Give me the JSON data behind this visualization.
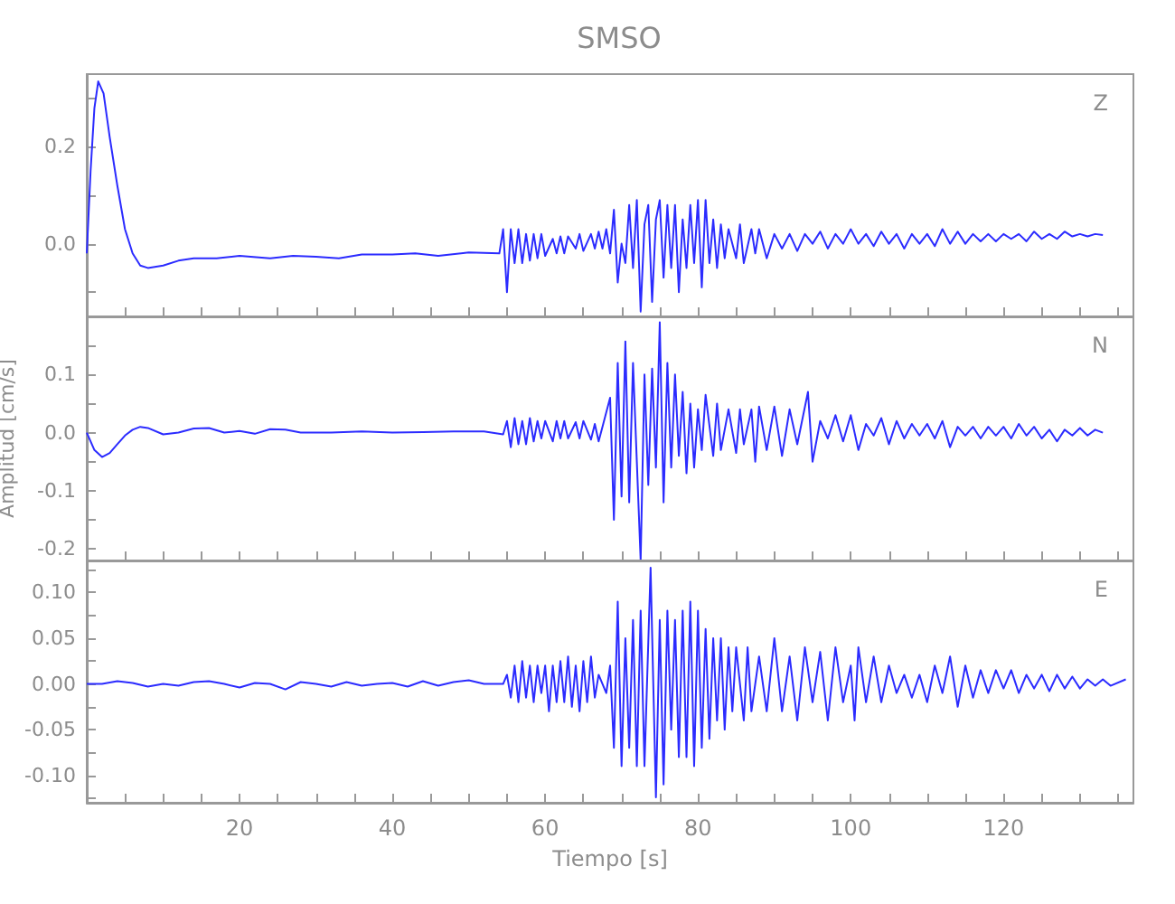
{
  "chart_data": [
    {
      "type": "line",
      "title": "SMSO",
      "annotations": [
        "Z"
      ],
      "tick_labels": "y",
      "xlim": [
        0,
        137
      ],
      "ylim": [
        -0.15,
        0.35
      ],
      "xticks": [
        {
          "value": 5,
          "label": null
        },
        {
          "value": 10,
          "label": null
        },
        {
          "value": 15,
          "label": null
        },
        {
          "value": 20,
          "label": null
        },
        {
          "value": 25,
          "label": null
        },
        {
          "value": 30,
          "label": null
        },
        {
          "value": 35,
          "label": null
        },
        {
          "value": 40,
          "label": null
        },
        {
          "value": 45,
          "label": null
        },
        {
          "value": 50,
          "label": null
        },
        {
          "value": 55,
          "label": null
        },
        {
          "value": 60,
          "label": null
        },
        {
          "value": 65,
          "label": null
        },
        {
          "value": 70,
          "label": null
        },
        {
          "value": 75,
          "label": null
        },
        {
          "value": 80,
          "label": null
        },
        {
          "value": 85,
          "label": null
        },
        {
          "value": 90,
          "label": null
        },
        {
          "value": 95,
          "label": null
        },
        {
          "value": 100,
          "label": null
        },
        {
          "value": 105,
          "label": null
        },
        {
          "value": 110,
          "label": null
        },
        {
          "value": 115,
          "label": null
        },
        {
          "value": 120,
          "label": null
        },
        {
          "value": 125,
          "label": null
        },
        {
          "value": 130,
          "label": null
        },
        {
          "value": 135,
          "label": null
        }
      ],
      "yticks": [
        {
          "value": -0.1,
          "label": null
        },
        {
          "value": 0,
          "label": "0.0"
        },
        {
          "value": 0.1,
          "label": null
        },
        0.2,
        {
          "value": 0.3,
          "label": null
        }
      ],
      "series": [
        {
          "color": "#2b2bff",
          "x": [
            0,
            0.5,
            1,
            1.5,
            2.2,
            3,
            4,
            5,
            6,
            7,
            8,
            10,
            12,
            14,
            17,
            20,
            24,
            27,
            30,
            33,
            36,
            40,
            43,
            46,
            50,
            54,
            54.5,
            55,
            55.5,
            56,
            56.5,
            57,
            57.5,
            58,
            58.5,
            59,
            59.5,
            60,
            61,
            61.5,
            62,
            62.5,
            63,
            64,
            64.5,
            65,
            66,
            66.5,
            67,
            67.5,
            68,
            68.5,
            69,
            69.5,
            70,
            70.5,
            71,
            71.5,
            72,
            72.5,
            73,
            73.5,
            74,
            74.5,
            75,
            75.5,
            76,
            76.5,
            77,
            77.5,
            78,
            78.5,
            79,
            79.5,
            80,
            80.5,
            81,
            81.5,
            82,
            82.5,
            83,
            83.5,
            84,
            85,
            85.5,
            86,
            87,
            87.5,
            88,
            89,
            90,
            91,
            92,
            93,
            94,
            95,
            96,
            97,
            98,
            99,
            100,
            101,
            102,
            103,
            104,
            105,
            106,
            107,
            108,
            109,
            110,
            111,
            112,
            113,
            114,
            115,
            116,
            117,
            118,
            119,
            120,
            121,
            122,
            123,
            124,
            125,
            126,
            127,
            128,
            129,
            130,
            131,
            132,
            133
          ],
          "values": [
            -0.02,
            0.15,
            0.28,
            0.335,
            0.31,
            0.22,
            0.12,
            0.03,
            -0.02,
            -0.045,
            -0.05,
            -0.045,
            -0.035,
            -0.03,
            -0.03,
            -0.025,
            -0.03,
            -0.025,
            -0.027,
            -0.03,
            -0.022,
            -0.022,
            -0.02,
            -0.025,
            -0.018,
            -0.02,
            0.03,
            -0.1,
            0.03,
            -0.04,
            0.03,
            -0.04,
            0.02,
            -0.035,
            0.02,
            -0.03,
            0.02,
            -0.025,
            0.01,
            -0.02,
            0.015,
            -0.02,
            0.015,
            -0.01,
            0.02,
            -0.015,
            0.02,
            -0.01,
            0.025,
            -0.01,
            0.03,
            -0.02,
            0.07,
            -0.08,
            0,
            -0.04,
            0.08,
            -0.05,
            0.09,
            -0.14,
            0.04,
            0.08,
            -0.12,
            0.05,
            0.09,
            -0.07,
            0.08,
            -0.05,
            0.08,
            -0.1,
            0.05,
            -0.05,
            0.08,
            -0.04,
            0.09,
            -0.09,
            0.09,
            -0.04,
            0.05,
            -0.05,
            0.04,
            -0.03,
            0.03,
            -0.03,
            0.04,
            -0.04,
            0.03,
            -0.02,
            0.03,
            -0.03,
            0.02,
            -0.01,
            0.02,
            -0.015,
            0.02,
            0,
            0.025,
            -0.01,
            0.02,
            0,
            0.03,
            0,
            0.02,
            -0.005,
            0.025,
            0,
            0.02,
            -0.01,
            0.02,
            0,
            0.02,
            -0.005,
            0.03,
            0,
            0.025,
            0,
            0.02,
            0.005,
            0.02,
            0.005,
            0.02,
            0.01,
            0.02,
            0.005,
            0.025,
            0.01,
            0.02,
            0.01,
            0.025,
            0.015,
            0.02,
            0.015,
            0.02,
            0.018
          ]
        }
      ]
    },
    {
      "type": "line",
      "ylabel": "Amplitud [cm/s]",
      "annotations": [
        "N"
      ],
      "tick_labels": "y",
      "xlim": [
        0,
        137
      ],
      "ylim": [
        -0.22,
        0.2
      ],
      "xticks": [
        {
          "value": 5,
          "label": null
        },
        {
          "value": 10,
          "label": null
        },
        {
          "value": 15,
          "label": null
        },
        {
          "value": 20,
          "label": null
        },
        {
          "value": 25,
          "label": null
        },
        {
          "value": 30,
          "label": null
        },
        {
          "value": 35,
          "label": null
        },
        {
          "value": 40,
          "label": null
        },
        {
          "value": 45,
          "label": null
        },
        {
          "value": 50,
          "label": null
        },
        {
          "value": 55,
          "label": null
        },
        {
          "value": 60,
          "label": null
        },
        {
          "value": 65,
          "label": null
        },
        {
          "value": 70,
          "label": null
        },
        {
          "value": 75,
          "label": null
        },
        {
          "value": 80,
          "label": null
        },
        {
          "value": 85,
          "label": null
        },
        {
          "value": 90,
          "label": null
        },
        {
          "value": 95,
          "label": null
        },
        {
          "value": 100,
          "label": null
        },
        {
          "value": 105,
          "label": null
        },
        {
          "value": 110,
          "label": null
        },
        {
          "value": 115,
          "label": null
        },
        {
          "value": 120,
          "label": null
        },
        {
          "value": 125,
          "label": null
        },
        {
          "value": 130,
          "label": null
        },
        {
          "value": 135,
          "label": null
        }
      ],
      "yticks": [
        -0.2,
        {
          "value": -0.15,
          "label": null
        },
        -0.1,
        {
          "value": -0.05,
          "label": null
        },
        {
          "value": 0,
          "label": "0.0"
        },
        {
          "value": 0.05,
          "label": null
        },
        0.1,
        {
          "value": 0.15,
          "label": null
        }
      ],
      "series": [
        {
          "color": "#2b2bff",
          "x": [
            0,
            1,
            2,
            3,
            4,
            5,
            6,
            7,
            8,
            10,
            12,
            14,
            16,
            18,
            20,
            22,
            24,
            26,
            28,
            32,
            36,
            40,
            44,
            48,
            52,
            54.5,
            55,
            55.5,
            56,
            56.5,
            57,
            57.5,
            58,
            58.5,
            59,
            59.5,
            60,
            61,
            61.5,
            62,
            62.5,
            63,
            64,
            64.5,
            65,
            66,
            66.5,
            67,
            67.5,
            68.5,
            69,
            69.5,
            70,
            70.5,
            71,
            71.5,
            72,
            72.5,
            73,
            73.5,
            74,
            74.5,
            75,
            75.5,
            76,
            76.5,
            77,
            77.5,
            78,
            78.5,
            79,
            79.5,
            80,
            80.5,
            81,
            82,
            82.5,
            83,
            84,
            85,
            85.5,
            86,
            87,
            87.5,
            88,
            89,
            90,
            91,
            92,
            93,
            94.4,
            95,
            96,
            97,
            98,
            99,
            100,
            101,
            102,
            103,
            104,
            105,
            106,
            107,
            108,
            109,
            110,
            111,
            112,
            113,
            114,
            115,
            116,
            117,
            118,
            119,
            120,
            121,
            122,
            123,
            124,
            125,
            126,
            127,
            128,
            129,
            130,
            131,
            132,
            133
          ],
          "values": [
            0,
            -0.03,
            -0.042,
            -0.035,
            -0.02,
            -0.005,
            0.005,
            0.01,
            0.008,
            -0.003,
            0,
            0.007,
            0.008,
            0,
            0.003,
            -0.002,
            0.006,
            0.005,
            0,
            0,
            0.002,
            0,
            0.001,
            0.002,
            0.002,
            -0.003,
            0.02,
            -0.025,
            0.025,
            -0.02,
            0.02,
            -0.02,
            0.025,
            -0.015,
            0.02,
            -0.01,
            0.02,
            -0.015,
            0.02,
            -0.01,
            0.02,
            -0.01,
            0.018,
            -0.01,
            0.02,
            -0.012,
            0.015,
            -0.015,
            0.01,
            0.06,
            -0.15,
            0.12,
            -0.11,
            0.157,
            -0.12,
            0.12,
            -0.05,
            -0.22,
            0.1,
            -0.09,
            0.11,
            -0.06,
            0.19,
            -0.12,
            0.12,
            -0.06,
            0.1,
            -0.04,
            0.07,
            -0.07,
            0.05,
            -0.06,
            0.04,
            -0.03,
            0.065,
            -0.04,
            0.05,
            -0.03,
            0.04,
            -0.035,
            0.04,
            -0.02,
            0.04,
            -0.05,
            0.045,
            -0.03,
            0.045,
            -0.04,
            0.04,
            -0.02,
            0.07,
            -0.05,
            0.02,
            -0.01,
            0.03,
            -0.015,
            0.03,
            -0.03,
            0.015,
            -0.005,
            0.025,
            -0.02,
            0.02,
            -0.01,
            0.015,
            -0.005,
            0.015,
            -0.01,
            0.02,
            -0.025,
            0.01,
            -0.005,
            0.01,
            -0.01,
            0.01,
            -0.005,
            0.01,
            -0.01,
            0.015,
            -0.005,
            0.01,
            -0.01,
            0.005,
            -0.015,
            0.005,
            -0.005,
            0.008,
            -0.005,
            0.005,
            0
          ]
        }
      ]
    },
    {
      "type": "line",
      "xlabel": "Tiempo [s]",
      "annotations": [
        "E"
      ],
      "xlim": [
        0,
        137
      ],
      "ylim": [
        -0.13,
        0.135
      ],
      "xticks": [
        {
          "value": 5,
          "label": null
        },
        {
          "value": 10,
          "label": null
        },
        {
          "value": 15,
          "label": null
        },
        20,
        {
          "value": 25,
          "label": null
        },
        {
          "value": 30,
          "label": null
        },
        {
          "value": 35,
          "label": null
        },
        40,
        {
          "value": 45,
          "label": null
        },
        {
          "value": 50,
          "label": null
        },
        {
          "value": 55,
          "label": null
        },
        60,
        {
          "value": 65,
          "label": null
        },
        {
          "value": 70,
          "label": null
        },
        {
          "value": 75,
          "label": null
        },
        80,
        {
          "value": 85,
          "label": null
        },
        {
          "value": 90,
          "label": null
        },
        {
          "value": 95,
          "label": null
        },
        100,
        {
          "value": 105,
          "label": null
        },
        {
          "value": 110,
          "label": null
        },
        {
          "value": 115,
          "label": null
        },
        120,
        {
          "value": 125,
          "label": null
        },
        {
          "value": 130,
          "label": null
        },
        {
          "value": 135,
          "label": null
        }
      ],
      "yticks": [
        {
          "value": -0.125,
          "label": null
        },
        {
          "value": -0.1,
          "label": "-0.10"
        },
        {
          "value": -0.075,
          "label": null
        },
        {
          "value": -0.05,
          "label": "-0.05"
        },
        {
          "value": -0.025,
          "label": null
        },
        {
          "value": 0,
          "label": "0.00"
        },
        {
          "value": 0.025,
          "label": null
        },
        {
          "value": 0.05,
          "label": "0.05"
        },
        {
          "value": 0.075,
          "label": null
        },
        {
          "value": 0.1,
          "label": "0.10"
        },
        {
          "value": 0.125,
          "label": null
        }
      ],
      "series": [
        {
          "color": "#2b2bff",
          "x": [
            0,
            2,
            4,
            6,
            8,
            10,
            12,
            14,
            16,
            18,
            20,
            22,
            24,
            26,
            28,
            30,
            32,
            34,
            36,
            38,
            40,
            42,
            44,
            46,
            48,
            50,
            52,
            54.5,
            55,
            55.5,
            56,
            56.5,
            57,
            57.5,
            58,
            58.5,
            59,
            59.5,
            60,
            60.5,
            61,
            61.5,
            62,
            62.5,
            63,
            63.5,
            64,
            64.5,
            65,
            65.5,
            66,
            66.5,
            67,
            68,
            68.5,
            69,
            69.5,
            70,
            70.5,
            71,
            71.5,
            72,
            72.5,
            73,
            73.8,
            74.5,
            75,
            75.5,
            76,
            76.5,
            77,
            77.5,
            78,
            78.5,
            79,
            79.5,
            80,
            80.5,
            81,
            81.5,
            82,
            82.5,
            83,
            83.5,
            84,
            84.5,
            85,
            86,
            86.5,
            87,
            88,
            89,
            90,
            91,
            92,
            93,
            94,
            95,
            96,
            97,
            98,
            99,
            100,
            100.5,
            101,
            102,
            103,
            104,
            105,
            106,
            107,
            108,
            109,
            110,
            111,
            112,
            113,
            114,
            115,
            116,
            117,
            118,
            119,
            120,
            121,
            122,
            123,
            124,
            125,
            126,
            127,
            128,
            129,
            130,
            131,
            132,
            133,
            134,
            136
          ],
          "values": [
            0,
            0,
            0.003,
            0.001,
            -0.003,
            0,
            -0.002,
            0.002,
            0.003,
            0,
            -0.004,
            0.001,
            0,
            -0.006,
            0.002,
            0,
            -0.003,
            0.002,
            -0.002,
            0,
            0.001,
            -0.003,
            0.003,
            -0.002,
            0.002,
            0.004,
            0,
            0,
            0.01,
            -0.015,
            0.02,
            -0.02,
            0.025,
            -0.015,
            0.02,
            -0.02,
            0.02,
            -0.01,
            0.02,
            -0.03,
            0.02,
            -0.02,
            0.025,
            -0.02,
            0.03,
            -0.025,
            0.02,
            -0.03,
            0.025,
            -0.02,
            0.03,
            -0.015,
            0.01,
            -0.01,
            0.02,
            -0.07,
            0.09,
            -0.09,
            0.05,
            -0.07,
            0.07,
            -0.09,
            0.08,
            -0.09,
            0.127,
            -0.124,
            0.07,
            -0.11,
            0.08,
            -0.05,
            0.07,
            -0.08,
            0.08,
            -0.08,
            0.09,
            -0.09,
            0.08,
            -0.07,
            0.06,
            -0.06,
            0.05,
            -0.04,
            0.05,
            -0.05,
            0.04,
            -0.03,
            0.04,
            -0.04,
            0.04,
            -0.03,
            0.03,
            -0.03,
            0.05,
            -0.03,
            0.03,
            -0.04,
            0.04,
            -0.02,
            0.035,
            -0.04,
            0.04,
            -0.02,
            0.02,
            -0.04,
            0.04,
            -0.02,
            0.03,
            -0.02,
            0.02,
            -0.01,
            0.01,
            -0.015,
            0.01,
            -0.02,
            0.02,
            -0.01,
            0.03,
            -0.025,
            0.02,
            -0.015,
            0.015,
            -0.01,
            0.015,
            -0.005,
            0.015,
            -0.01,
            0.01,
            -0.005,
            0.01,
            -0.008,
            0.01,
            -0.005,
            0.008,
            -0.005,
            0.005,
            -0.002,
            0.005,
            -0.002,
            0.005
          ]
        }
      ]
    }
  ]
}
